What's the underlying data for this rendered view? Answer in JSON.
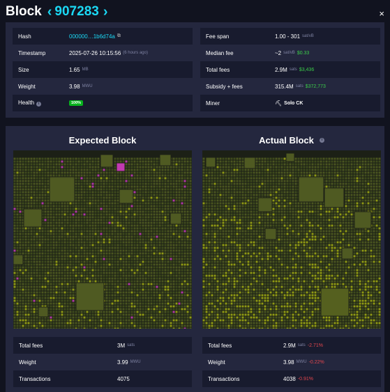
{
  "header": {
    "title": "Block",
    "prev_icon": "chevron-left-icon",
    "height": "907283",
    "next_icon": "chevron-right-icon",
    "close": "×"
  },
  "details_left": [
    {
      "key": "Hash",
      "value": "000000…1b6d74a",
      "extra": "",
      "link": true,
      "copy_icon": true
    },
    {
      "key": "Timestamp",
      "value": "2025-07-26 10:15:56",
      "extra": "(6 hours ago)"
    },
    {
      "key": "Size",
      "value": "1.65",
      "unit": "MB"
    },
    {
      "key": "Weight",
      "value": "3.98",
      "unit": "MWU"
    },
    {
      "key": "Health",
      "badge": "100%",
      "info_icon": true
    }
  ],
  "details_right": [
    {
      "key": "Fee span",
      "value": "1.00 - 301",
      "unit": "sat/vB"
    },
    {
      "key": "Median fee",
      "value": "~2",
      "unit": "sat/vB",
      "usd": "$0.33"
    },
    {
      "key": "Total fees",
      "value": "2.9M",
      "unit": "sats",
      "usd": "$3,436"
    },
    {
      "key": "Subsidy + fees",
      "value": "315.4M",
      "unit": "sats",
      "usd": "$372,773"
    },
    {
      "key": "Miner",
      "value": "Solo CK",
      "icon": "pickaxe-icon"
    }
  ],
  "expected": {
    "title": "Expected Block",
    "stats": [
      {
        "key": "Total fees",
        "value": "3M",
        "unit": "sats"
      },
      {
        "key": "Weight",
        "value": "3.99",
        "unit": "MWU"
      },
      {
        "key": "Transactions",
        "value": "4075"
      }
    ]
  },
  "actual": {
    "title": "Actual Block",
    "info_icon": true,
    "stats": [
      {
        "key": "Total fees",
        "value": "2.9M",
        "unit": "sats",
        "delta": "-2.71%"
      },
      {
        "key": "Weight",
        "value": "3.98",
        "unit": "MWU",
        "delta": "-0.22%"
      },
      {
        "key": "Transactions",
        "value": "4038",
        "delta": "-0.91%"
      }
    ]
  },
  "colors": {
    "accent": "#1bd8f4",
    "panel": "#24273e",
    "bg": "#11131f",
    "green": "#3bcc49",
    "red": "#e4474e",
    "tx_base": "#4f5a1f",
    "tx_bright": "#7a8a1c",
    "tx_missing": "#c23ab0"
  }
}
